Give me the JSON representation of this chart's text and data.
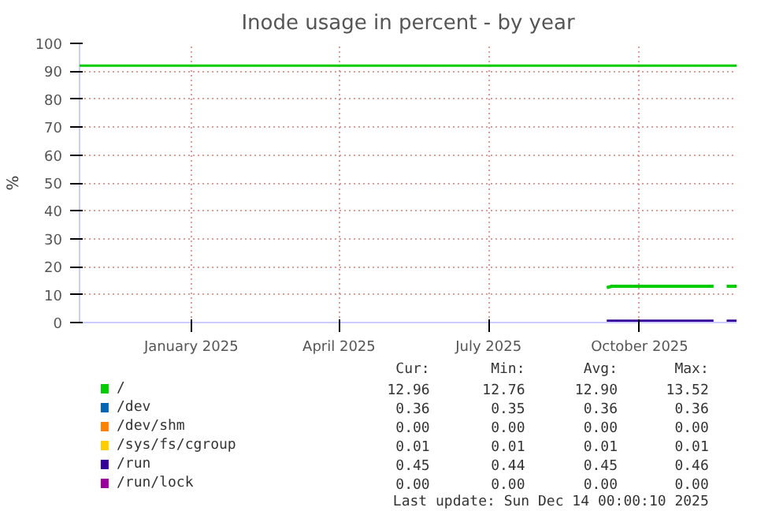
{
  "chart_data": {
    "type": "line",
    "title": "Inode usage in percent - by year",
    "ylabel": "%",
    "xlim": [
      "2024-11-09",
      "2025-12-14"
    ],
    "xticks": [
      {
        "value": "2025-01-16",
        "label": "January 2025"
      },
      {
        "value": "2025-04-16",
        "label": "April 2025"
      },
      {
        "value": "2025-07-16",
        "label": "July 2025"
      },
      {
        "value": "2025-10-16",
        "label": "October 2025"
      }
    ],
    "ylim": [
      0,
      100
    ],
    "yticks": [
      0,
      10,
      20,
      30,
      40,
      50,
      60,
      70,
      80,
      90,
      100
    ],
    "x": [
      "2025-09-26",
      "2025-09-29",
      "2025-11-30",
      "2025-12-04",
      "2025-12-08",
      "2025-12-14"
    ],
    "series": [
      {
        "name": "/",
        "color": "#00cc00",
        "values": [
          12.5,
          13,
          13,
          null,
          13,
          13
        ]
      },
      {
        "name": "/dev",
        "color": "#0066b3",
        "values": [
          null,
          null,
          null,
          null,
          null,
          null
        ]
      },
      {
        "name": "/dev/shm",
        "color": "#ff8000",
        "values": [
          null,
          null,
          null,
          null,
          null,
          null
        ]
      },
      {
        "name": "/sys/fs/cgroup",
        "color": "#ffcc00",
        "values": [
          null,
          null,
          null,
          null,
          null,
          null
        ]
      },
      {
        "name": "/run",
        "color": "#330099",
        "values": [
          0.5,
          0.5,
          0.5,
          null,
          0.5,
          0.5
        ]
      },
      {
        "name": "/run/lock",
        "color": "#990099",
        "values": [
          null,
          null,
          null,
          null,
          null,
          null
        ]
      }
    ],
    "ref_lines": [
      {
        "axis": "y",
        "value": 92,
        "label": null,
        "color": "#00cc00"
      }
    ],
    "grid": true,
    "legend": "bottom",
    "marker": "none",
    "line_style": "solid",
    "annotations": [
      "Cur:",
      "Min:",
      "Avg:",
      "Max:",
      "12.96",
      "12.76",
      "12.90",
      "13.52",
      "0.36",
      "0.35",
      "0.36",
      "0.36",
      "0.00",
      "0.00",
      "0.00",
      "0.00",
      "0.01",
      "0.01",
      "0.01",
      "0.01",
      "0.45",
      "0.44",
      "0.45",
      "0.46",
      "0.00",
      "0.00",
      "0.00",
      "0.00",
      "Last update: Sun Dec 14 00:00:10 2025"
    ]
  }
}
